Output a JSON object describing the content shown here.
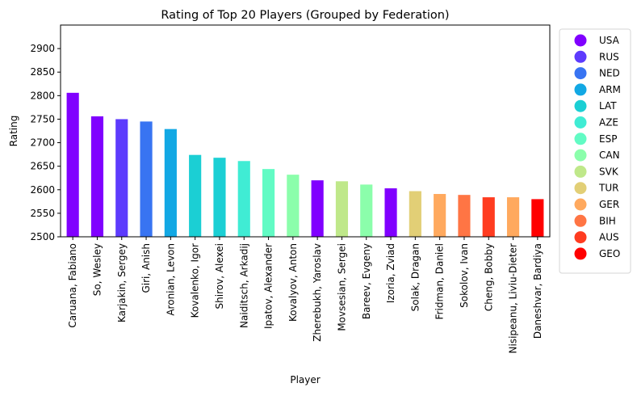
{
  "chart_data": {
    "type": "bar",
    "title": "Rating of Top 20 Players (Grouped by Federation)",
    "xlabel": "Player",
    "ylabel": "Rating",
    "ylim": [
      2500,
      2950
    ],
    "yticks": [
      2500,
      2550,
      2600,
      2650,
      2700,
      2750,
      2800,
      2850,
      2900
    ],
    "grid": false,
    "legend_position": "outside-right",
    "categories": [
      "Caruana, Fabiano",
      "So, Wesley",
      "Karjakin, Sergey",
      "Giri, Anish",
      "Aronian, Levon",
      "Kovalenko, Igor",
      "Shirov, Alexei",
      "Naiditsch, Arkadij",
      "Ipatov, Alexander",
      "Kovalyov, Anton",
      "Zherebukh, Yaroslav",
      "Movsesian, Sergei",
      "Bareev, Evgeny",
      "Izoria, Zviad",
      "Solak, Dragan",
      "Fridman, Daniel",
      "Sokolov, Ivan",
      "Cheng, Bobby",
      "Nisipeanu, Liviu-Dieter",
      "Daneshvar, Bardiya"
    ],
    "values": [
      2806,
      2756,
      2750,
      2745,
      2729,
      2674,
      2668,
      2661,
      2644,
      2632,
      2620,
      2618,
      2611,
      2603,
      2597,
      2591,
      2589,
      2584,
      2584,
      2580
    ],
    "federation": [
      "USA",
      "USA",
      "RUS",
      "NED",
      "ARM",
      "LAT",
      "LAT",
      "AZE",
      "ESP",
      "CAN",
      "USA",
      "SVK",
      "CAN",
      "USA",
      "TUR",
      "GER",
      "BIH",
      "AUS",
      "GER",
      "GEO"
    ],
    "legend": [
      {
        "name": "USA",
        "color": "#8000ff"
      },
      {
        "name": "RUS",
        "color": "#5d3bfd"
      },
      {
        "name": "NED",
        "color": "#3874f2"
      },
      {
        "name": "ARM",
        "color": "#12a8e4"
      },
      {
        "name": "LAT",
        "color": "#1bcfd4"
      },
      {
        "name": "AZE",
        "color": "#40ecd4"
      },
      {
        "name": "ESP",
        "color": "#62fbc4"
      },
      {
        "name": "CAN",
        "color": "#8bfeab"
      },
      {
        "name": "SVK",
        "color": "#bfe88a"
      },
      {
        "name": "TUR",
        "color": "#e2cf76"
      },
      {
        "name": "GER",
        "color": "#ffa95e"
      },
      {
        "name": "BIH",
        "color": "#ff7544"
      },
      {
        "name": "AUS",
        "color": "#ff3c20"
      },
      {
        "name": "GEO",
        "color": "#ff0000"
      }
    ]
  }
}
